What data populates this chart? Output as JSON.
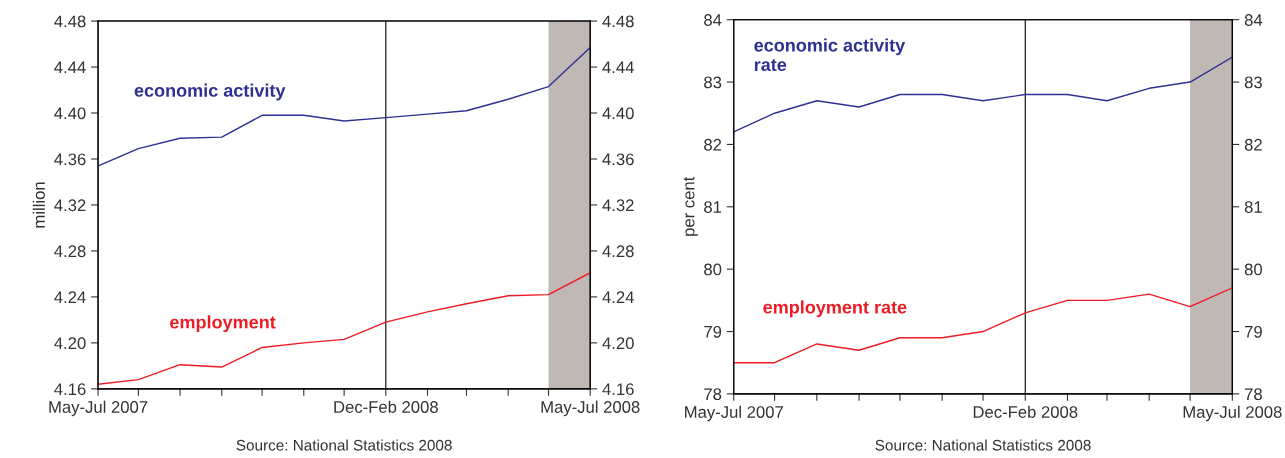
{
  "chart_data": [
    {
      "type": "line",
      "ylabel": "million",
      "x": [
        "2007-06",
        "2007-07",
        "2007-08",
        "2007-09",
        "2007-10",
        "2007-11",
        "2007-12",
        "2008-01",
        "2008-02",
        "2008-03",
        "2008-04",
        "2008-05",
        "2008-06"
      ],
      "series": [
        {
          "name": "economic activity",
          "color": "#2e3192",
          "values": [
            4.354,
            4.369,
            4.378,
            4.379,
            4.398,
            4.398,
            4.393,
            4.396,
            4.399,
            4.402,
            4.412,
            4.423,
            4.457
          ]
        },
        {
          "name": "employment",
          "color": "#ed1c24",
          "values": [
            4.164,
            4.168,
            4.181,
            4.179,
            4.196,
            4.2,
            4.203,
            4.218,
            4.227,
            4.234,
            4.241,
            4.242,
            4.261
          ]
        }
      ],
      "xlim": [
        "2007-06",
        "2008-06"
      ],
      "xticks": [
        {
          "value": "2007-06",
          "label": "May-Jul 2007"
        },
        {
          "value": "2007-07",
          "label": null
        },
        {
          "value": "2007-08",
          "label": null
        },
        {
          "value": "2007-09",
          "label": null
        },
        {
          "value": "2007-10",
          "label": null
        },
        {
          "value": "2007-11",
          "label": null
        },
        {
          "value": "2007-12",
          "label": null
        },
        {
          "value": "2008-01",
          "label": "Dec-Feb 2008"
        },
        {
          "value": "2008-02",
          "label": null
        },
        {
          "value": "2008-03",
          "label": null
        },
        {
          "value": "2008-04",
          "label": null
        },
        {
          "value": "2008-05",
          "label": null
        },
        {
          "value": "2008-06",
          "label": "May-Jul 2008"
        }
      ],
      "ylim": [
        4.16,
        4.48
      ],
      "yticks": [
        4.16,
        {
          "value": 4.2,
          "label": "4.20"
        },
        4.24,
        4.28,
        4.32,
        4.36,
        {
          "value": 4.4,
          "label": "4.40"
        },
        4.44,
        4.48
      ],
      "y2lim": [
        4.16,
        4.48
      ],
      "y2ticks": [
        4.16,
        {
          "value": 4.2,
          "label": "4.20"
        },
        4.24,
        4.28,
        4.32,
        4.36,
        {
          "value": 4.4,
          "label": "4.40"
        },
        4.44,
        4.48
      ],
      "ref_lines": [
        {
          "axis": "x",
          "value": "2008-01",
          "color": "#000000"
        }
      ],
      "bands": [
        {
          "axis": "x",
          "from": "2008-05",
          "to": "2008-06",
          "color": "#c0b8b4"
        }
      ],
      "grid": false,
      "legend": false,
      "annotations": [
        "Source: National Statistics 2008"
      ]
    },
    {
      "type": "line",
      "ylabel": "per cent",
      "x": [
        "2007-06",
        "2007-07",
        "2007-08",
        "2007-09",
        "2007-10",
        "2007-11",
        "2007-12",
        "2008-01",
        "2008-02",
        "2008-03",
        "2008-04",
        "2008-05",
        "2008-06"
      ],
      "series": [
        {
          "name": "economic activity\nrate",
          "color": "#2e3192",
          "values": [
            82.2,
            82.5,
            82.7,
            82.6,
            82.8,
            82.8,
            82.7,
            82.8,
            82.8,
            82.7,
            82.9,
            83.0,
            83.4
          ]
        },
        {
          "name": "employment rate",
          "color": "#ed1c24",
          "values": [
            78.5,
            78.5,
            78.8,
            78.7,
            78.9,
            78.9,
            79.0,
            79.3,
            79.5,
            79.5,
            79.6,
            79.4,
            79.7
          ]
        }
      ],
      "xlim": [
        "2007-06",
        "2008-06"
      ],
      "xticks": [
        {
          "value": "2007-06",
          "label": "May-Jul 2007"
        },
        {
          "value": "2007-07",
          "label": null
        },
        {
          "value": "2007-08",
          "label": null
        },
        {
          "value": "2007-09",
          "label": null
        },
        {
          "value": "2007-10",
          "label": null
        },
        {
          "value": "2007-11",
          "label": null
        },
        {
          "value": "2007-12",
          "label": null
        },
        {
          "value": "2008-01",
          "label": "Dec-Feb 2008"
        },
        {
          "value": "2008-02",
          "label": null
        },
        {
          "value": "2008-03",
          "label": null
        },
        {
          "value": "2008-04",
          "label": null
        },
        {
          "value": "2008-05",
          "label": null
        },
        {
          "value": "2008-06",
          "label": "May-Jul 2008"
        }
      ],
      "ylim": [
        78,
        84
      ],
      "yticks": [
        78,
        79,
        80,
        81,
        82,
        83,
        84
      ],
      "y2lim": [
        78,
        84
      ],
      "y2ticks": [
        78,
        79,
        80,
        81,
        82,
        83,
        84
      ],
      "ref_lines": [
        {
          "axis": "x",
          "value": "2008-01",
          "color": "#000000"
        }
      ],
      "bands": [
        {
          "axis": "x",
          "from": "2008-05",
          "to": "2008-06",
          "color": "#c0b8b4"
        }
      ],
      "grid": false,
      "legend": false,
      "annotations": [
        "Source: National Statistics 2008"
      ]
    }
  ]
}
